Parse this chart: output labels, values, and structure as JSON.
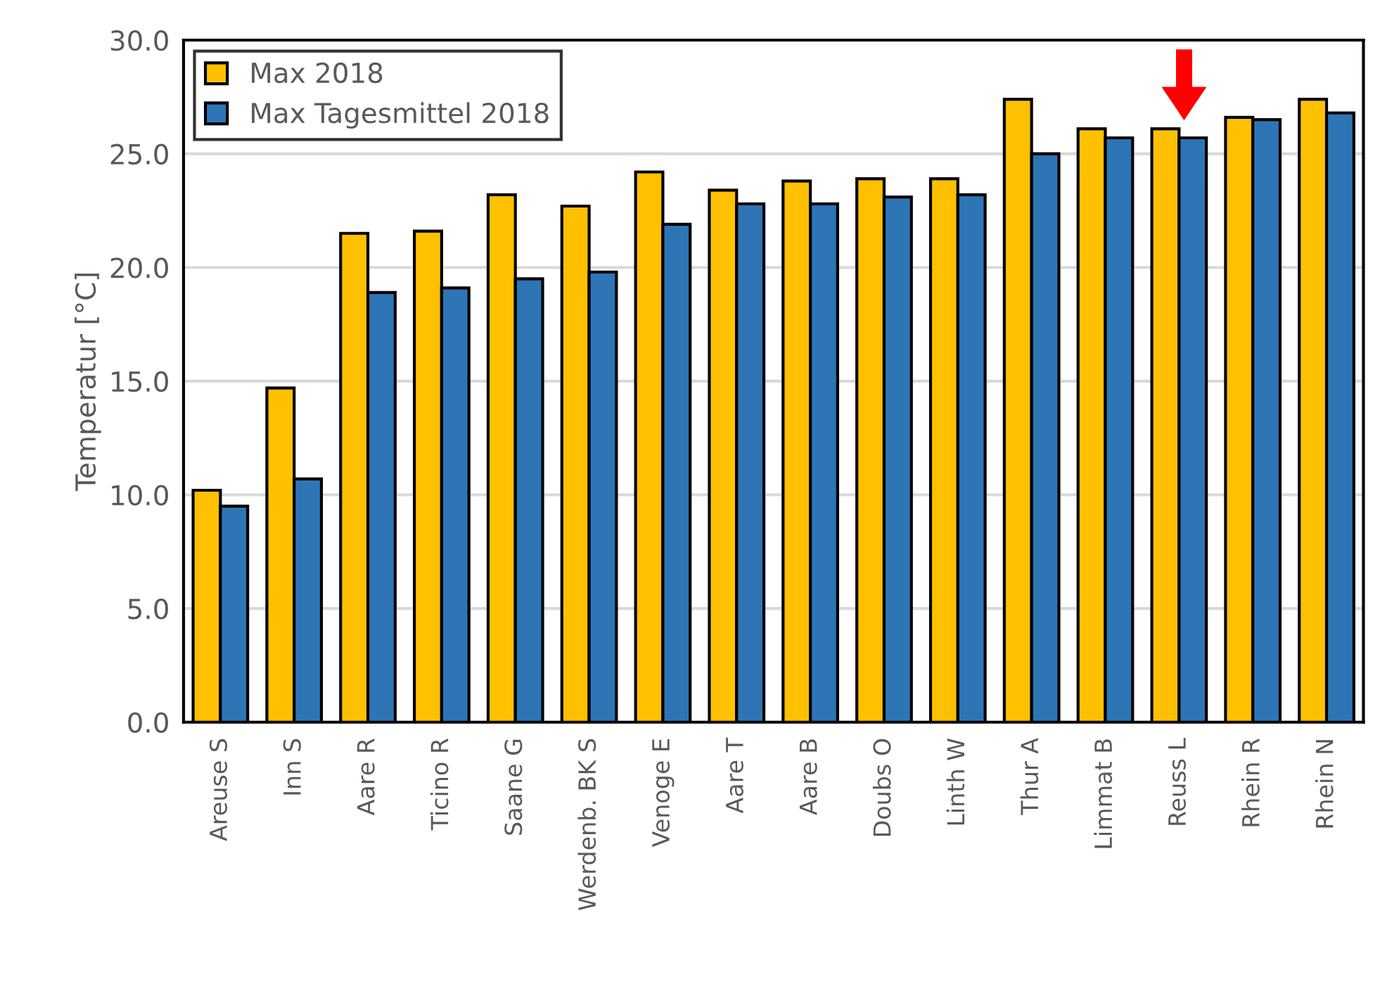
{
  "chart_data": {
    "type": "bar",
    "ylabel": "Temperatur [°C]",
    "categories": [
      "Areuse S",
      "Inn S",
      "Aare R",
      "Ticino R",
      "Saane G",
      "Werdenb. BK S",
      "Venoge E",
      "Aare T",
      "Aare B",
      "Doubs O",
      "Linth W",
      "Thur A",
      "Limmat B",
      "Reuss L",
      "Rhein R",
      "Rhein N"
    ],
    "series": [
      {
        "name": "Max 2018",
        "color": "#ffc000",
        "values": [
          10.2,
          14.7,
          21.5,
          21.6,
          23.2,
          22.7,
          24.2,
          23.4,
          23.8,
          23.9,
          23.9,
          27.4,
          26.1,
          26.1,
          26.6,
          27.4
        ]
      },
      {
        "name": "Max Tagesmittel 2018",
        "color": "#2e75b6",
        "values": [
          9.5,
          10.7,
          18.9,
          19.1,
          19.5,
          19.8,
          21.9,
          22.8,
          22.8,
          23.1,
          23.2,
          25.0,
          25.7,
          25.7,
          26.5,
          26.8
        ]
      }
    ],
    "ylim": [
      0,
      30
    ],
    "yticks": [
      {
        "value": 0,
        "label": "0.0"
      },
      {
        "value": 5,
        "label": "5.0"
      },
      {
        "value": 10,
        "label": "10.0"
      },
      {
        "value": 15,
        "label": "15.0"
      },
      {
        "value": 20,
        "label": "20.0"
      },
      {
        "value": 25,
        "label": "25.0"
      },
      {
        "value": 30,
        "label": "30.0"
      }
    ],
    "grid": "y",
    "legend": "top left"
  }
}
